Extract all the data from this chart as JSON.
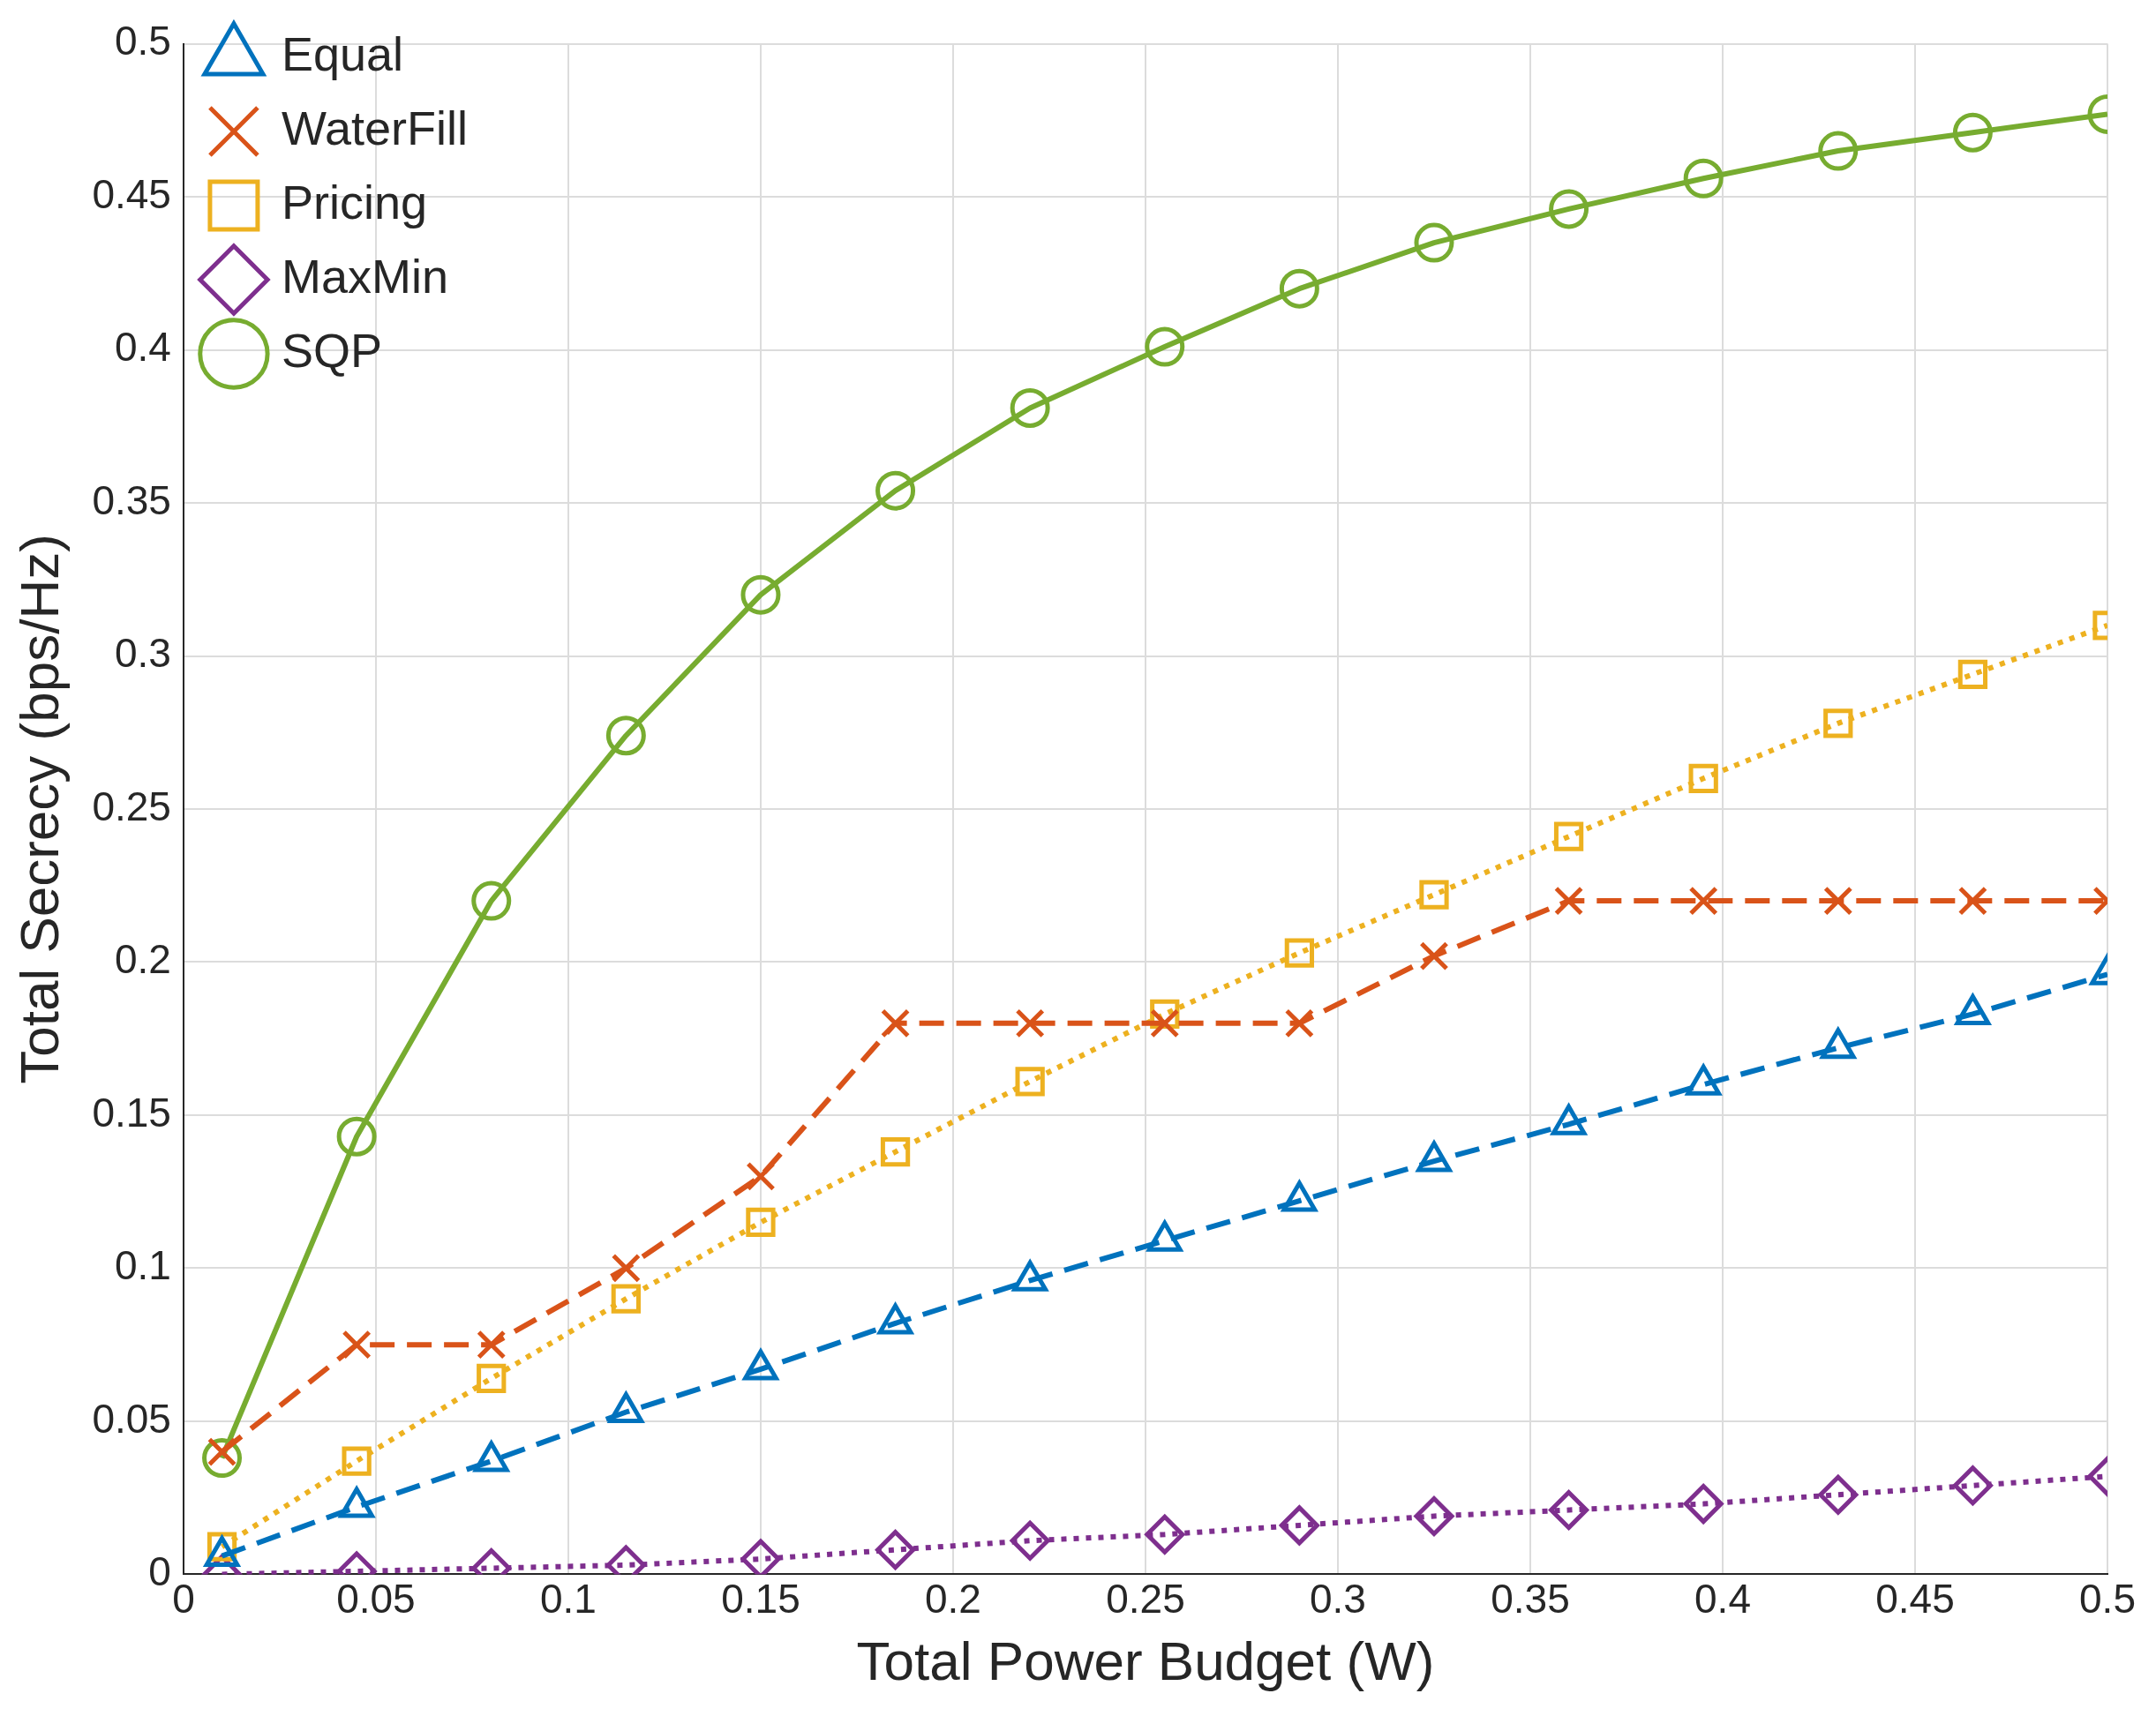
{
  "chart_data": {
    "type": "line",
    "xlabel": "Total Power Budget (W)",
    "ylabel": "Total Secrecy (bps/Hz)",
    "x": [
      0.01,
      0.045,
      0.08,
      0.115,
      0.15,
      0.185,
      0.22,
      0.255,
      0.29,
      0.325,
      0.36,
      0.395,
      0.43,
      0.465,
      0.5
    ],
    "series": [
      {
        "name": "Equal",
        "color": "#0072bd",
        "marker": "triangle",
        "line_style": "dashed",
        "values": [
          0.006,
          0.022,
          0.037,
          0.053,
          0.067,
          0.082,
          0.096,
          0.109,
          0.122,
          0.135,
          0.147,
          0.16,
          0.172,
          0.183,
          0.196
        ]
      },
      {
        "name": "WaterFill",
        "color": "#d95319",
        "marker": "cross",
        "line_style": "dashed",
        "values": [
          0.04,
          0.075,
          0.075,
          0.1,
          0.13,
          0.18,
          0.18,
          0.18,
          0.18,
          0.202,
          0.22,
          0.22,
          0.22,
          0.22,
          0.22
        ]
      },
      {
        "name": "Pricing",
        "color": "#edb120",
        "marker": "square",
        "line_style": "dotted",
        "values": [
          0.009,
          0.037,
          0.064,
          0.09,
          0.115,
          0.138,
          0.161,
          0.183,
          0.203,
          0.222,
          0.241,
          0.26,
          0.278,
          0.294,
          0.31
        ]
      },
      {
        "name": "MaxMin",
        "color": "#7e2f8e",
        "marker": "diamond",
        "line_style": "dotted",
        "values": [
          0,
          0.001,
          0.002,
          0.003,
          0.005,
          0.008,
          0.011,
          0.013,
          0.016,
          0.019,
          0.021,
          0.023,
          0.026,
          0.029,
          0.032
        ]
      },
      {
        "name": "SQP",
        "color": "#77ac30",
        "marker": "circle",
        "line_style": "solid",
        "values": [
          0.038,
          0.143,
          0.22,
          0.274,
          0.32,
          0.354,
          0.381,
          0.401,
          0.42,
          0.435,
          0.446,
          0.456,
          0.465,
          0.471,
          0.477
        ]
      }
    ],
    "xlim": [
      0,
      0.5
    ],
    "xticks": [
      0,
      0.05,
      0.1,
      0.15,
      0.2,
      0.25,
      0.3,
      0.35,
      0.4,
      0.45,
      0.5
    ],
    "ylim": [
      0,
      0.5
    ],
    "yticks": [
      0,
      0.05,
      0.1,
      0.15,
      0.2,
      0.25,
      0.3,
      0.35,
      0.4,
      0.45,
      0.5
    ],
    "grid": true,
    "legend": "top left"
  }
}
